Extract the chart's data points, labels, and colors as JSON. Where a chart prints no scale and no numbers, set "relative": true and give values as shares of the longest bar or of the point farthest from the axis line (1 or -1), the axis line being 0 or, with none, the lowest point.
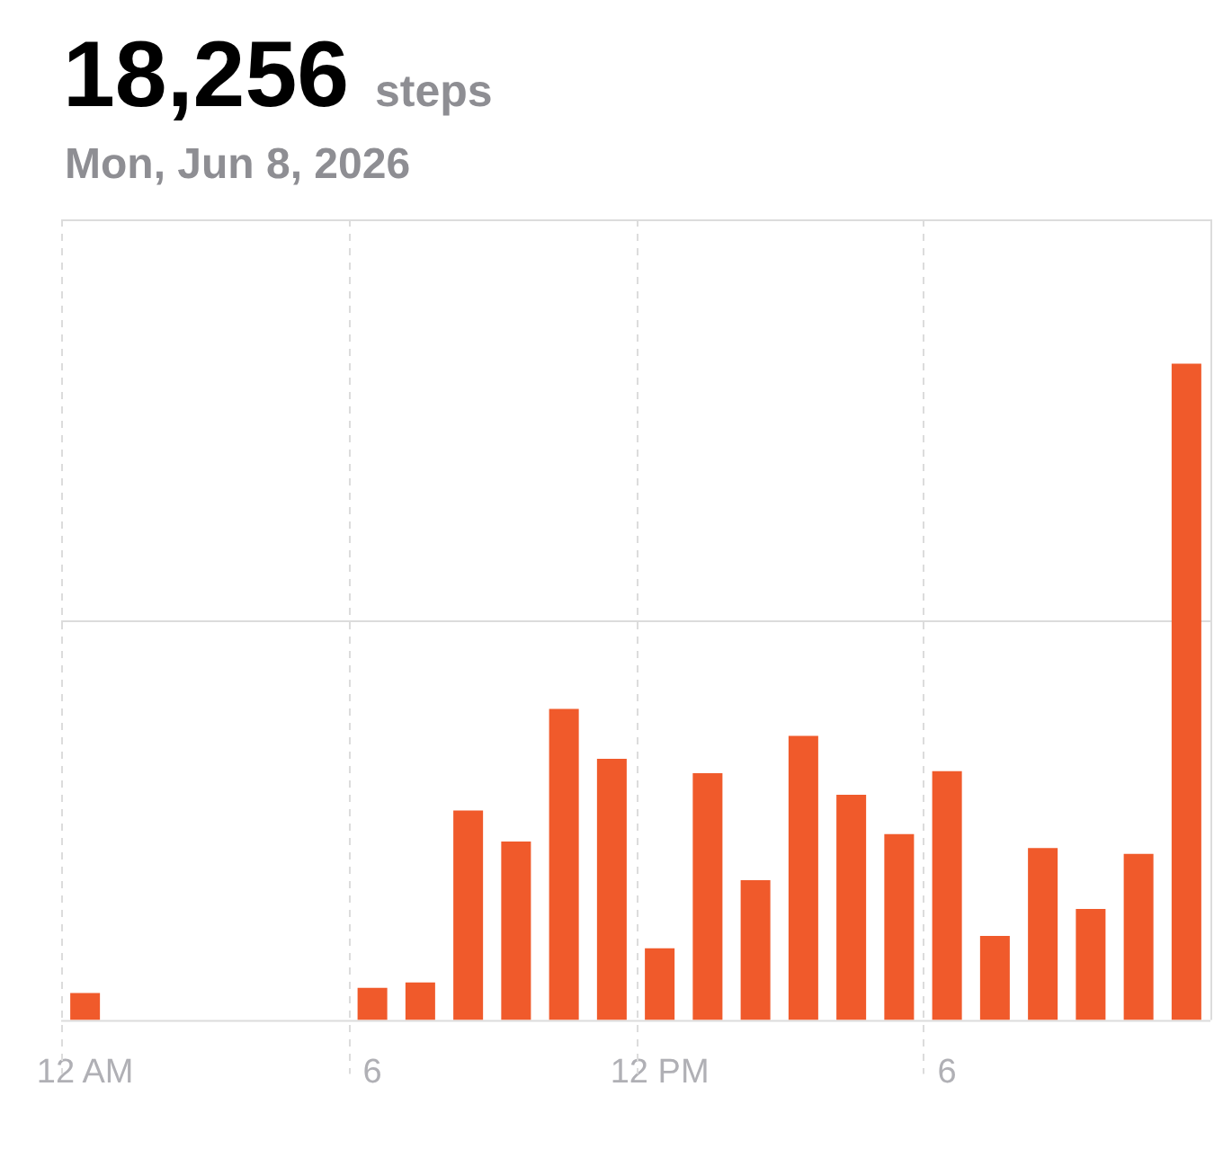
{
  "chart_data": {
    "type": "bar",
    "relative": true,
    "title": "18,256 steps",
    "subtitle": "Mon, Jun 8, 2026",
    "categories": [
      "12 AM",
      null,
      null,
      null,
      null,
      null,
      "6",
      null,
      null,
      null,
      null,
      null,
      "12 PM",
      null,
      null,
      null,
      null,
      null,
      "6",
      null,
      null,
      null,
      null,
      null
    ],
    "values": [
      0.041,
      null,
      null,
      null,
      null,
      null,
      0.049,
      0.057,
      0.319,
      0.272,
      0.474,
      0.398,
      0.109,
      0.376,
      0.213,
      0.433,
      0.343,
      0.283,
      0.379,
      0.128,
      0.262,
      0.169,
      0.253,
      1
    ],
    "color": "#f05a2b",
    "grid": true,
    "ref_lines": [
      {
        "axis": "y",
        "value": 0.61,
        "color": "#dcdcdc"
      }
    ]
  }
}
